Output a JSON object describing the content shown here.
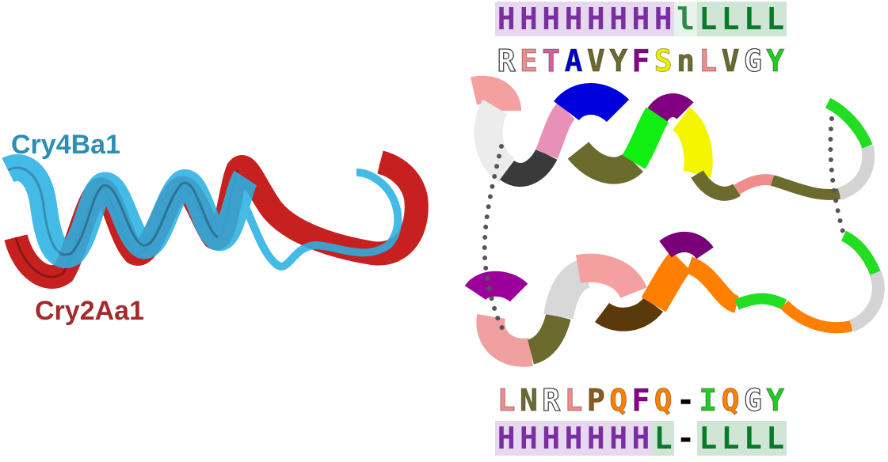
{
  "labels": {
    "cry4ba1": {
      "text": "Cry4Ba1",
      "color": "#2b8fb4"
    },
    "cry2aa1": {
      "text": "Cry2Aa1",
      "color": "#a52a2a"
    }
  },
  "top_structure": {
    "residues": [
      "R",
      "E",
      "T",
      "A",
      "V",
      "Y",
      "F",
      "S",
      "n",
      "L",
      "V",
      "G",
      "Y"
    ],
    "residue_colors": [
      "#ffffff",
      "#f08c8c",
      "#d5609f",
      "#0000cc",
      "#6b6b2e",
      "#6b6b2e",
      "#8b008b",
      "#eeee00",
      "#6b6b2e",
      "#f08c8c",
      "#6b6b2e",
      "#ffffff",
      "#22cc22"
    ],
    "ss": [
      "H",
      "H",
      "H",
      "H",
      "H",
      "H",
      "H",
      "H",
      "l",
      "L",
      "L",
      "L",
      "L"
    ],
    "ss_bg": [
      "#e6d9ef",
      "#e6d9ef",
      "#e6d9ef",
      "#e6d9ef",
      "#e6d9ef",
      "#e6d9ef",
      "#e6d9ef",
      "#e6d9ef",
      "#e8f3ec",
      "#cfe6d6",
      "#cfe6d6",
      "#cfe6d6",
      "#cfe6d6"
    ],
    "ss_fg": [
      "#7a2ea0",
      "#7a2ea0",
      "#7a2ea0",
      "#7a2ea0",
      "#7a2ea0",
      "#7a2ea0",
      "#7a2ea0",
      "#7a2ea0",
      "#2f8a4a",
      "#0a7a2a",
      "#0a7a2a",
      "#0a7a2a",
      "#0a7a2a"
    ]
  },
  "bottom_structure": {
    "residues": [
      "L",
      "N",
      "R",
      "L",
      "P",
      "Q",
      "F",
      "Q",
      "-",
      "I",
      "Q",
      "G",
      "Y"
    ],
    "residue_colors": [
      "#f08c8c",
      "#6b6b2e",
      "#ffffff",
      "#f08c8c",
      "#8b5a1a",
      "#ff8000",
      "#8b008b",
      "#ff8000",
      "#000000",
      "#22cc22",
      "#ff8000",
      "#ffffff",
      "#22cc22"
    ],
    "ss": [
      "H",
      "H",
      "H",
      "H",
      "H",
      "H",
      "H",
      "L",
      "-",
      "L",
      "L",
      "L",
      "L"
    ],
    "ss_bg": [
      "#e6d9ef",
      "#e6d9ef",
      "#e6d9ef",
      "#e6d9ef",
      "#e6d9ef",
      "#e6d9ef",
      "#e6d9ef",
      "#cfe6d6",
      "#ffffff",
      "#cfe6d6",
      "#cfe6d6",
      "#cfe6d6",
      "#cfe6d6"
    ],
    "ss_fg": [
      "#7a2ea0",
      "#7a2ea0",
      "#7a2ea0",
      "#7a2ea0",
      "#7a2ea0",
      "#7a2ea0",
      "#7a2ea0",
      "#0a7a2a",
      "#000000",
      "#0a7a2a",
      "#0a7a2a",
      "#0a7a2a",
      "#0a7a2a"
    ]
  }
}
